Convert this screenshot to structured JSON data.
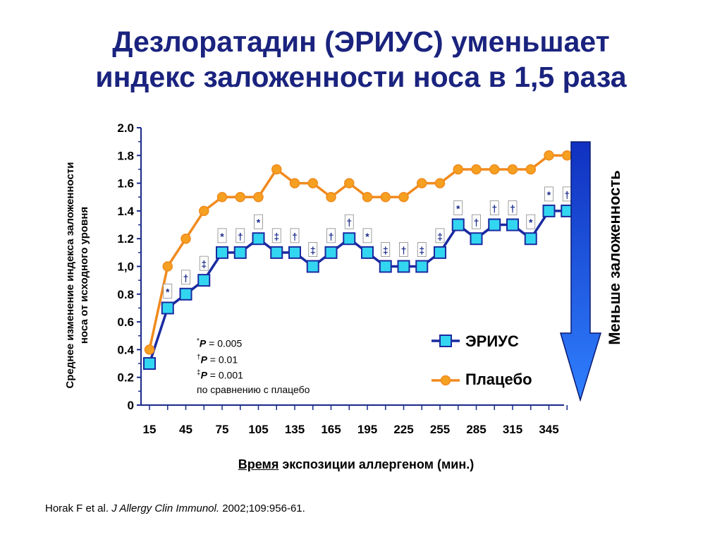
{
  "title_lines": [
    "Дезлоратадин (ЭРИУС) уменьшает",
    "индекс заложенности носа в 1,5 раза"
  ],
  "chart_data": {
    "type": "line",
    "ylabel_lines": [
      "Среднее изменение индекса заложенности",
      "носа от исходного уровня"
    ],
    "xlabel_underlined": "Время",
    "xlabel_rest": " экспозиции аллергеном (мин.)",
    "ylim": [
      0,
      2.0
    ],
    "yticks": [
      "0",
      "0.2",
      "0.4",
      "0.6",
      "0.8",
      "1,0",
      "1.2",
      "1.4",
      "1.6",
      "1.8",
      "2.0"
    ],
    "xticks": [
      "15",
      "45",
      "75",
      "105",
      "135",
      "165",
      "195",
      "225",
      "255",
      "285",
      "315",
      "345"
    ],
    "x": [
      15,
      30,
      45,
      60,
      75,
      90,
      105,
      120,
      135,
      150,
      165,
      180,
      195,
      210,
      225,
      240,
      255,
      270,
      285,
      300,
      315,
      330,
      345,
      360
    ],
    "series": [
      {
        "name": "ЭРИУС",
        "color": "#1a2aa0",
        "marker": "square",
        "marker_color": "#33d6f0",
        "values": [
          0.3,
          0.7,
          0.8,
          0.9,
          1.1,
          1.1,
          1.2,
          1.1,
          1.1,
          1.0,
          1.1,
          1.2,
          1.1,
          1.0,
          1.0,
          1.0,
          1.1,
          1.3,
          1.2,
          1.3,
          1.3,
          1.2,
          1.4,
          1.4
        ]
      },
      {
        "name": "Плацебо",
        "color": "#f08a1e",
        "marker": "circle",
        "marker_color": "#f5a020",
        "values": [
          0.4,
          1.0,
          1.2,
          1.4,
          1.5,
          1.5,
          1.5,
          1.7,
          1.6,
          1.6,
          1.5,
          1.6,
          1.5,
          1.5,
          1.5,
          1.6,
          1.6,
          1.7,
          1.7,
          1.7,
          1.7,
          1.7,
          1.8,
          1.8
        ]
      }
    ],
    "significance": [
      "",
      "*",
      "†",
      "‡",
      "*",
      "†",
      "*",
      "‡",
      "†",
      "‡",
      "†",
      "†",
      "*",
      "‡",
      "†",
      "‡",
      "‡",
      "*",
      "†",
      "†",
      "†",
      "*",
      "*",
      "†"
    ],
    "legend_position": "bottom-right",
    "grid": false
  },
  "pnotes": {
    "line1_sym": "*",
    "line1_p": "P",
    "line1_rest": " = 0.005",
    "line2_sym": "†",
    "line2_p": "P",
    "line2_rest": " = 0.01",
    "line3_sym": "‡",
    "line3_p": "P",
    "line3_rest": " = 0.001",
    "line4": "по сравнению с плацебо"
  },
  "arrow_label": "Меньше заложенность",
  "arrow_colors": {
    "top": "#1030c0",
    "bottom": "#2f80ff"
  },
  "citation": {
    "authors": "Horak F et al. ",
    "journal": "J Allergy Clin Immunol.",
    "rest": " 2002;109:956-61."
  }
}
